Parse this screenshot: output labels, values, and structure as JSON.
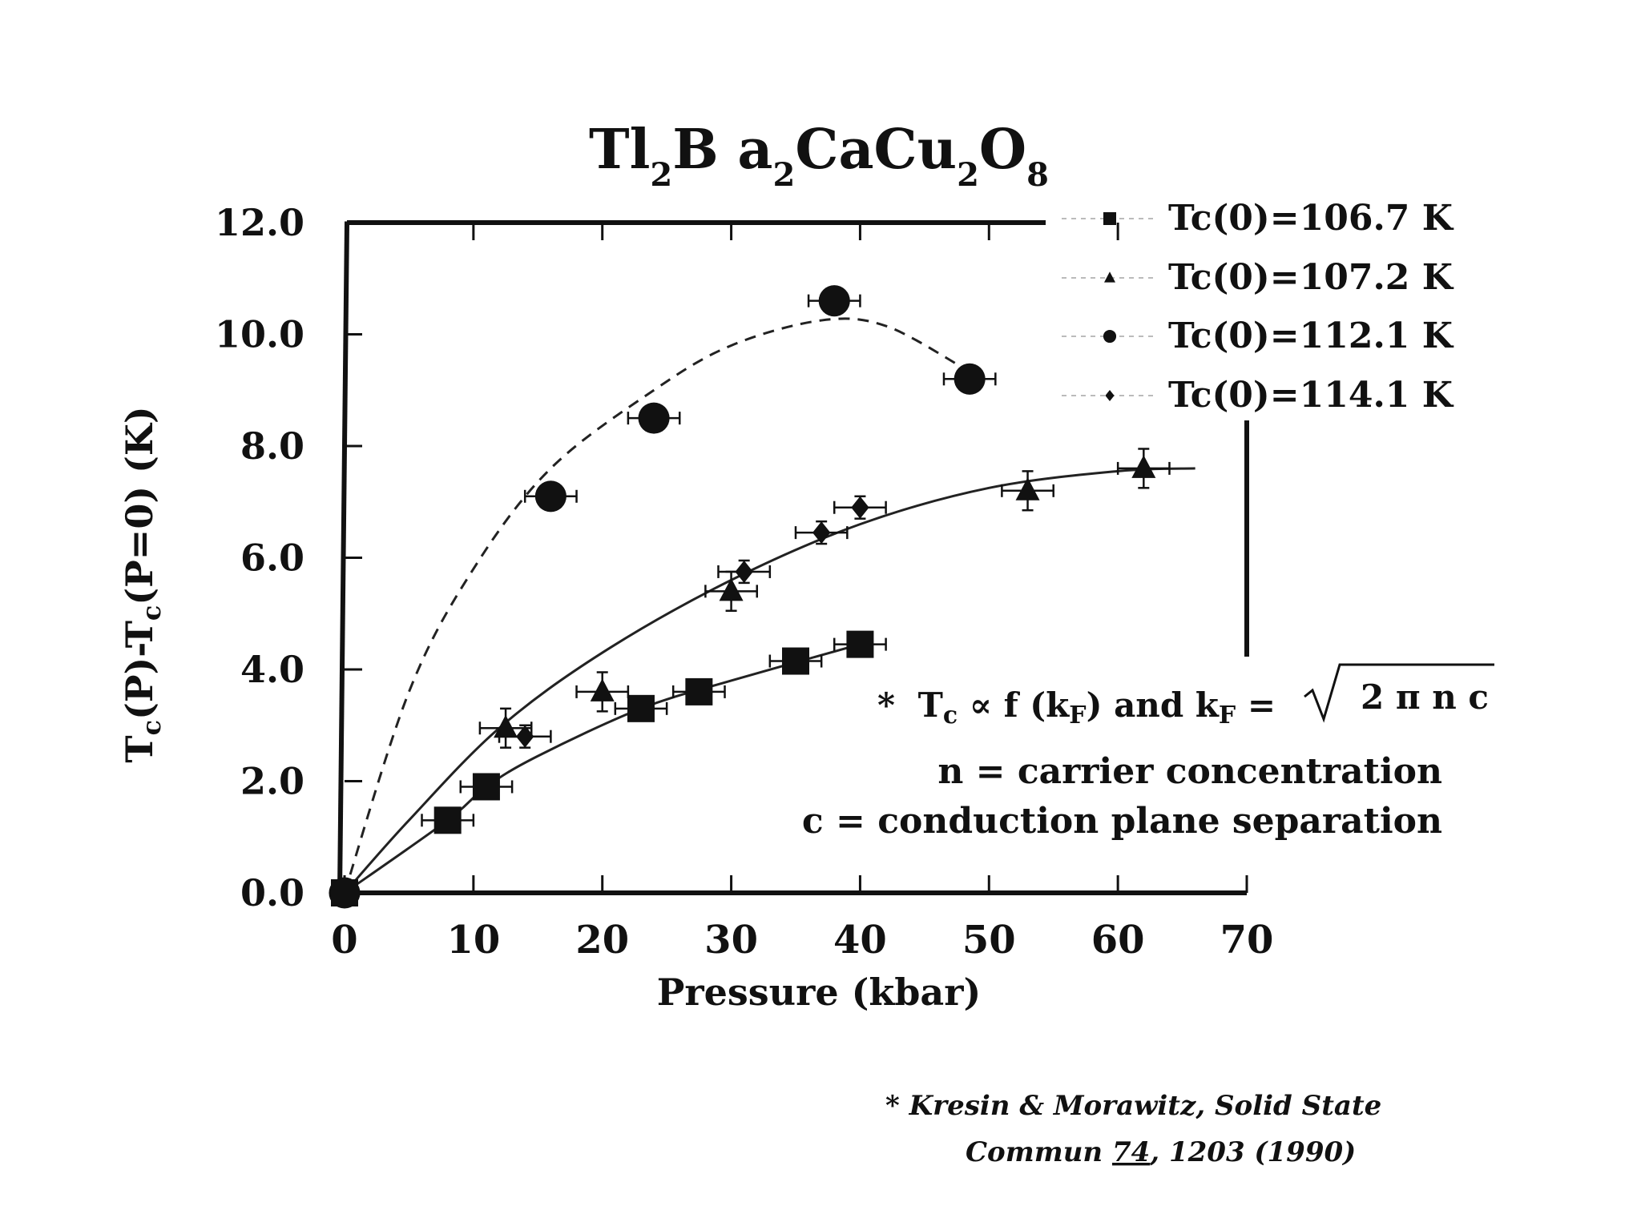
{
  "chart_data": {
    "type": "scatter",
    "title": {
      "parts": [
        {
          "text": "Tl",
          "sub": false
        },
        {
          "text": "2",
          "sub": true
        },
        {
          "text": "B a",
          "sub": false
        },
        {
          "text": "2",
          "sub": true
        },
        {
          "text": "CaCu",
          "sub": false
        },
        {
          "text": "2",
          "sub": true
        },
        {
          "text": "O",
          "sub": false
        },
        {
          "text": "8",
          "sub": true
        }
      ]
    },
    "xlabel": "Pressure (kbar)",
    "ylabel": {
      "parts": [
        {
          "text": "T",
          "sub": false
        },
        {
          "text": "c",
          "sub": true
        },
        {
          "text": "(P)-T",
          "sub": false
        },
        {
          "text": "c",
          "sub": true
        },
        {
          "text": "(P=0) (K)",
          "sub": false
        }
      ]
    },
    "xlim": [
      0,
      70
    ],
    "ylim": [
      0,
      12
    ],
    "x_ticks": [
      "0",
      "10",
      "20",
      "30",
      "40",
      "50",
      "60",
      "70"
    ],
    "y_ticks": [
      "0.0",
      "2.0",
      "4.0",
      "6.0",
      "8.0",
      "10.0",
      "12.0"
    ],
    "x_tick_values": [
      0,
      10,
      20,
      30,
      40,
      50,
      60,
      70
    ],
    "y_tick_values": [
      0,
      2,
      4,
      6,
      8,
      10,
      12
    ],
    "grid": false,
    "legend_position": "top-right",
    "series": [
      {
        "name": "Tc(0)=106.7 K",
        "marker": "square",
        "points": [
          [
            0,
            0
          ],
          [
            8,
            1.3
          ],
          [
            11,
            1.9
          ],
          [
            23,
            3.3
          ],
          [
            27.5,
            3.6
          ],
          [
            35,
            4.15
          ],
          [
            40,
            4.45
          ]
        ],
        "x_error": 2,
        "y_error": 0
      },
      {
        "name": "Tc(0)=107.2 K",
        "marker": "triangle",
        "points": [
          [
            0,
            0
          ],
          [
            12.5,
            2.95
          ],
          [
            20,
            3.6
          ],
          [
            30,
            5.4
          ],
          [
            53,
            7.2
          ],
          [
            62,
            7.6
          ]
        ],
        "x_error": 2,
        "y_error": 0.35
      },
      {
        "name": "Tc(0)=112.1 K",
        "marker": "circle",
        "points": [
          [
            0,
            0
          ],
          [
            16,
            7.1
          ],
          [
            24,
            8.5
          ],
          [
            38,
            10.6
          ],
          [
            48.5,
            9.2
          ]
        ],
        "x_error": 2,
        "y_error": 0
      },
      {
        "name": "Tc(0)=114.1 K",
        "marker": "diamond",
        "points": [
          [
            0,
            0
          ],
          [
            14,
            2.8
          ],
          [
            31,
            5.75
          ],
          [
            37,
            6.45
          ],
          [
            40,
            6.9
          ]
        ],
        "x_error": 2,
        "y_error": 0.2
      }
    ],
    "fit_curves": [
      {
        "style": "dashed",
        "points": [
          [
            0,
            0
          ],
          [
            5,
            3.6
          ],
          [
            10,
            5.8
          ],
          [
            16,
            7.6
          ],
          [
            24,
            9.0
          ],
          [
            30,
            9.8
          ],
          [
            37,
            10.25
          ],
          [
            42,
            10.15
          ],
          [
            48,
            9.4
          ]
        ]
      },
      {
        "style": "solid",
        "points": [
          [
            0,
            0
          ],
          [
            5,
            1.3
          ],
          [
            12,
            2.95
          ],
          [
            20,
            4.3
          ],
          [
            30,
            5.6
          ],
          [
            40,
            6.6
          ],
          [
            50,
            7.25
          ],
          [
            60,
            7.55
          ],
          [
            66,
            7.6
          ]
        ]
      },
      {
        "style": "solid",
        "points": [
          [
            0,
            0
          ],
          [
            8,
            1.3
          ],
          [
            11,
            1.9
          ],
          [
            15,
            2.45
          ],
          [
            23,
            3.3
          ],
          [
            30,
            3.8
          ],
          [
            40,
            4.45
          ]
        ]
      }
    ]
  },
  "annotation": {
    "line1": {
      "star": "*",
      "tc_main": "T",
      "tc_sub": "c",
      "propto": " ∝ f (k",
      "kf_sub1": "F",
      "close": ")  and k",
      "kf_sub2": "F",
      "eq": " = ",
      "sqrt_arg": "2 π n c"
    },
    "line2": "n = carrier concentration",
    "line3": "c = conduction plane separation"
  },
  "citation": {
    "line1": "* Kresin & Morawitz, Solid State",
    "line2_pre": "Commun ",
    "line2_vol": "74",
    "line2_post": ", 1203 (1990)"
  }
}
